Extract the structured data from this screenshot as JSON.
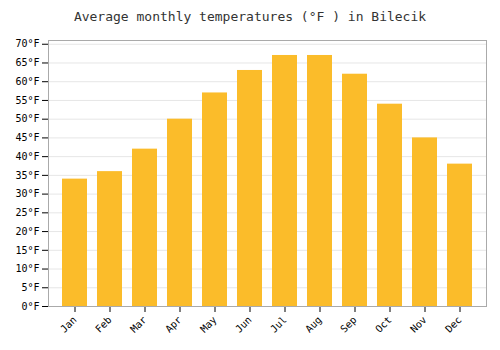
{
  "chart_data": {
    "type": "bar",
    "title": "Average monthly temperatures (°F ) in Bilecik",
    "categories": [
      "Jan",
      "Feb",
      "Mar",
      "Apr",
      "May",
      "Jun",
      "Jul",
      "Aug",
      "Sep",
      "Oct",
      "Nov",
      "Dec"
    ],
    "values": [
      34,
      36,
      42,
      50,
      57,
      63,
      67,
      67,
      62,
      54,
      45,
      38
    ],
    "color": "#FBBC2A",
    "ylim": [
      0,
      71
    ],
    "yticks": [
      {
        "value": 0,
        "label": "0°F"
      },
      {
        "value": 5,
        "label": "5°F"
      },
      {
        "value": 10,
        "label": "10°F"
      },
      {
        "value": 15,
        "label": "15°F"
      },
      {
        "value": 20,
        "label": "20°F"
      },
      {
        "value": 25,
        "label": "25°F"
      },
      {
        "value": 30,
        "label": "30°F"
      },
      {
        "value": 35,
        "label": "35°F"
      },
      {
        "value": 40,
        "label": "40°F"
      },
      {
        "value": 45,
        "label": "45°F"
      },
      {
        "value": 50,
        "label": "50°F"
      },
      {
        "value": 55,
        "label": "55°F"
      },
      {
        "value": 60,
        "label": "60°F"
      },
      {
        "value": 65,
        "label": "65°F"
      },
      {
        "value": 70,
        "label": "70°F"
      }
    ],
    "grid": true
  }
}
